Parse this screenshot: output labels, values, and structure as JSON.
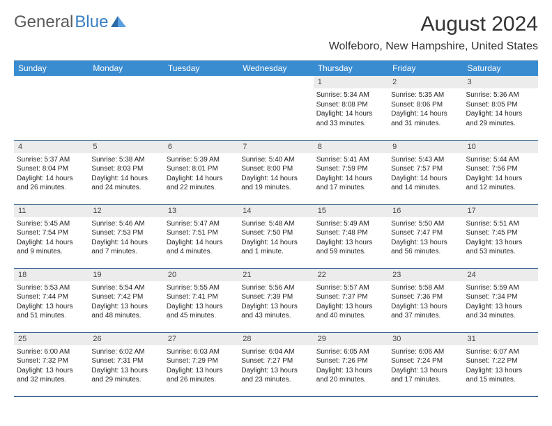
{
  "brand": {
    "part1": "General",
    "part2": "Blue"
  },
  "title": "August 2024",
  "location": "Wolfeboro, New Hampshire, United States",
  "colors": {
    "header_bg": "#3a8cd1",
    "header_fg": "#ffffff",
    "row_border": "#345b85",
    "daynum_bg": "#ececec",
    "logo_gray": "#5a5a5a",
    "logo_blue": "#3a7fc4",
    "page_bg": "#ffffff",
    "text": "#222222"
  },
  "typography": {
    "title_fontsize": 30,
    "location_fontsize": 16,
    "header_fontsize": 12,
    "daynum_fontsize": 11,
    "body_fontsize": 10
  },
  "dayNames": [
    "Sunday",
    "Monday",
    "Tuesday",
    "Wednesday",
    "Thursday",
    "Friday",
    "Saturday"
  ],
  "weeks": [
    [
      null,
      null,
      null,
      null,
      {
        "n": "1",
        "sr": "Sunrise: 5:34 AM",
        "ss": "Sunset: 8:08 PM",
        "d1": "Daylight: 14 hours",
        "d2": "and 33 minutes."
      },
      {
        "n": "2",
        "sr": "Sunrise: 5:35 AM",
        "ss": "Sunset: 8:06 PM",
        "d1": "Daylight: 14 hours",
        "d2": "and 31 minutes."
      },
      {
        "n": "3",
        "sr": "Sunrise: 5:36 AM",
        "ss": "Sunset: 8:05 PM",
        "d1": "Daylight: 14 hours",
        "d2": "and 29 minutes."
      }
    ],
    [
      {
        "n": "4",
        "sr": "Sunrise: 5:37 AM",
        "ss": "Sunset: 8:04 PM",
        "d1": "Daylight: 14 hours",
        "d2": "and 26 minutes."
      },
      {
        "n": "5",
        "sr": "Sunrise: 5:38 AM",
        "ss": "Sunset: 8:03 PM",
        "d1": "Daylight: 14 hours",
        "d2": "and 24 minutes."
      },
      {
        "n": "6",
        "sr": "Sunrise: 5:39 AM",
        "ss": "Sunset: 8:01 PM",
        "d1": "Daylight: 14 hours",
        "d2": "and 22 minutes."
      },
      {
        "n": "7",
        "sr": "Sunrise: 5:40 AM",
        "ss": "Sunset: 8:00 PM",
        "d1": "Daylight: 14 hours",
        "d2": "and 19 minutes."
      },
      {
        "n": "8",
        "sr": "Sunrise: 5:41 AM",
        "ss": "Sunset: 7:59 PM",
        "d1": "Daylight: 14 hours",
        "d2": "and 17 minutes."
      },
      {
        "n": "9",
        "sr": "Sunrise: 5:43 AM",
        "ss": "Sunset: 7:57 PM",
        "d1": "Daylight: 14 hours",
        "d2": "and 14 minutes."
      },
      {
        "n": "10",
        "sr": "Sunrise: 5:44 AM",
        "ss": "Sunset: 7:56 PM",
        "d1": "Daylight: 14 hours",
        "d2": "and 12 minutes."
      }
    ],
    [
      {
        "n": "11",
        "sr": "Sunrise: 5:45 AM",
        "ss": "Sunset: 7:54 PM",
        "d1": "Daylight: 14 hours",
        "d2": "and 9 minutes."
      },
      {
        "n": "12",
        "sr": "Sunrise: 5:46 AM",
        "ss": "Sunset: 7:53 PM",
        "d1": "Daylight: 14 hours",
        "d2": "and 7 minutes."
      },
      {
        "n": "13",
        "sr": "Sunrise: 5:47 AM",
        "ss": "Sunset: 7:51 PM",
        "d1": "Daylight: 14 hours",
        "d2": "and 4 minutes."
      },
      {
        "n": "14",
        "sr": "Sunrise: 5:48 AM",
        "ss": "Sunset: 7:50 PM",
        "d1": "Daylight: 14 hours",
        "d2": "and 1 minute."
      },
      {
        "n": "15",
        "sr": "Sunrise: 5:49 AM",
        "ss": "Sunset: 7:48 PM",
        "d1": "Daylight: 13 hours",
        "d2": "and 59 minutes."
      },
      {
        "n": "16",
        "sr": "Sunrise: 5:50 AM",
        "ss": "Sunset: 7:47 PM",
        "d1": "Daylight: 13 hours",
        "d2": "and 56 minutes."
      },
      {
        "n": "17",
        "sr": "Sunrise: 5:51 AM",
        "ss": "Sunset: 7:45 PM",
        "d1": "Daylight: 13 hours",
        "d2": "and 53 minutes."
      }
    ],
    [
      {
        "n": "18",
        "sr": "Sunrise: 5:53 AM",
        "ss": "Sunset: 7:44 PM",
        "d1": "Daylight: 13 hours",
        "d2": "and 51 minutes."
      },
      {
        "n": "19",
        "sr": "Sunrise: 5:54 AM",
        "ss": "Sunset: 7:42 PM",
        "d1": "Daylight: 13 hours",
        "d2": "and 48 minutes."
      },
      {
        "n": "20",
        "sr": "Sunrise: 5:55 AM",
        "ss": "Sunset: 7:41 PM",
        "d1": "Daylight: 13 hours",
        "d2": "and 45 minutes."
      },
      {
        "n": "21",
        "sr": "Sunrise: 5:56 AM",
        "ss": "Sunset: 7:39 PM",
        "d1": "Daylight: 13 hours",
        "d2": "and 43 minutes."
      },
      {
        "n": "22",
        "sr": "Sunrise: 5:57 AM",
        "ss": "Sunset: 7:37 PM",
        "d1": "Daylight: 13 hours",
        "d2": "and 40 minutes."
      },
      {
        "n": "23",
        "sr": "Sunrise: 5:58 AM",
        "ss": "Sunset: 7:36 PM",
        "d1": "Daylight: 13 hours",
        "d2": "and 37 minutes."
      },
      {
        "n": "24",
        "sr": "Sunrise: 5:59 AM",
        "ss": "Sunset: 7:34 PM",
        "d1": "Daylight: 13 hours",
        "d2": "and 34 minutes."
      }
    ],
    [
      {
        "n": "25",
        "sr": "Sunrise: 6:00 AM",
        "ss": "Sunset: 7:32 PM",
        "d1": "Daylight: 13 hours",
        "d2": "and 32 minutes."
      },
      {
        "n": "26",
        "sr": "Sunrise: 6:02 AM",
        "ss": "Sunset: 7:31 PM",
        "d1": "Daylight: 13 hours",
        "d2": "and 29 minutes."
      },
      {
        "n": "27",
        "sr": "Sunrise: 6:03 AM",
        "ss": "Sunset: 7:29 PM",
        "d1": "Daylight: 13 hours",
        "d2": "and 26 minutes."
      },
      {
        "n": "28",
        "sr": "Sunrise: 6:04 AM",
        "ss": "Sunset: 7:27 PM",
        "d1": "Daylight: 13 hours",
        "d2": "and 23 minutes."
      },
      {
        "n": "29",
        "sr": "Sunrise: 6:05 AM",
        "ss": "Sunset: 7:26 PM",
        "d1": "Daylight: 13 hours",
        "d2": "and 20 minutes."
      },
      {
        "n": "30",
        "sr": "Sunrise: 6:06 AM",
        "ss": "Sunset: 7:24 PM",
        "d1": "Daylight: 13 hours",
        "d2": "and 17 minutes."
      },
      {
        "n": "31",
        "sr": "Sunrise: 6:07 AM",
        "ss": "Sunset: 7:22 PM",
        "d1": "Daylight: 13 hours",
        "d2": "and 15 minutes."
      }
    ]
  ]
}
